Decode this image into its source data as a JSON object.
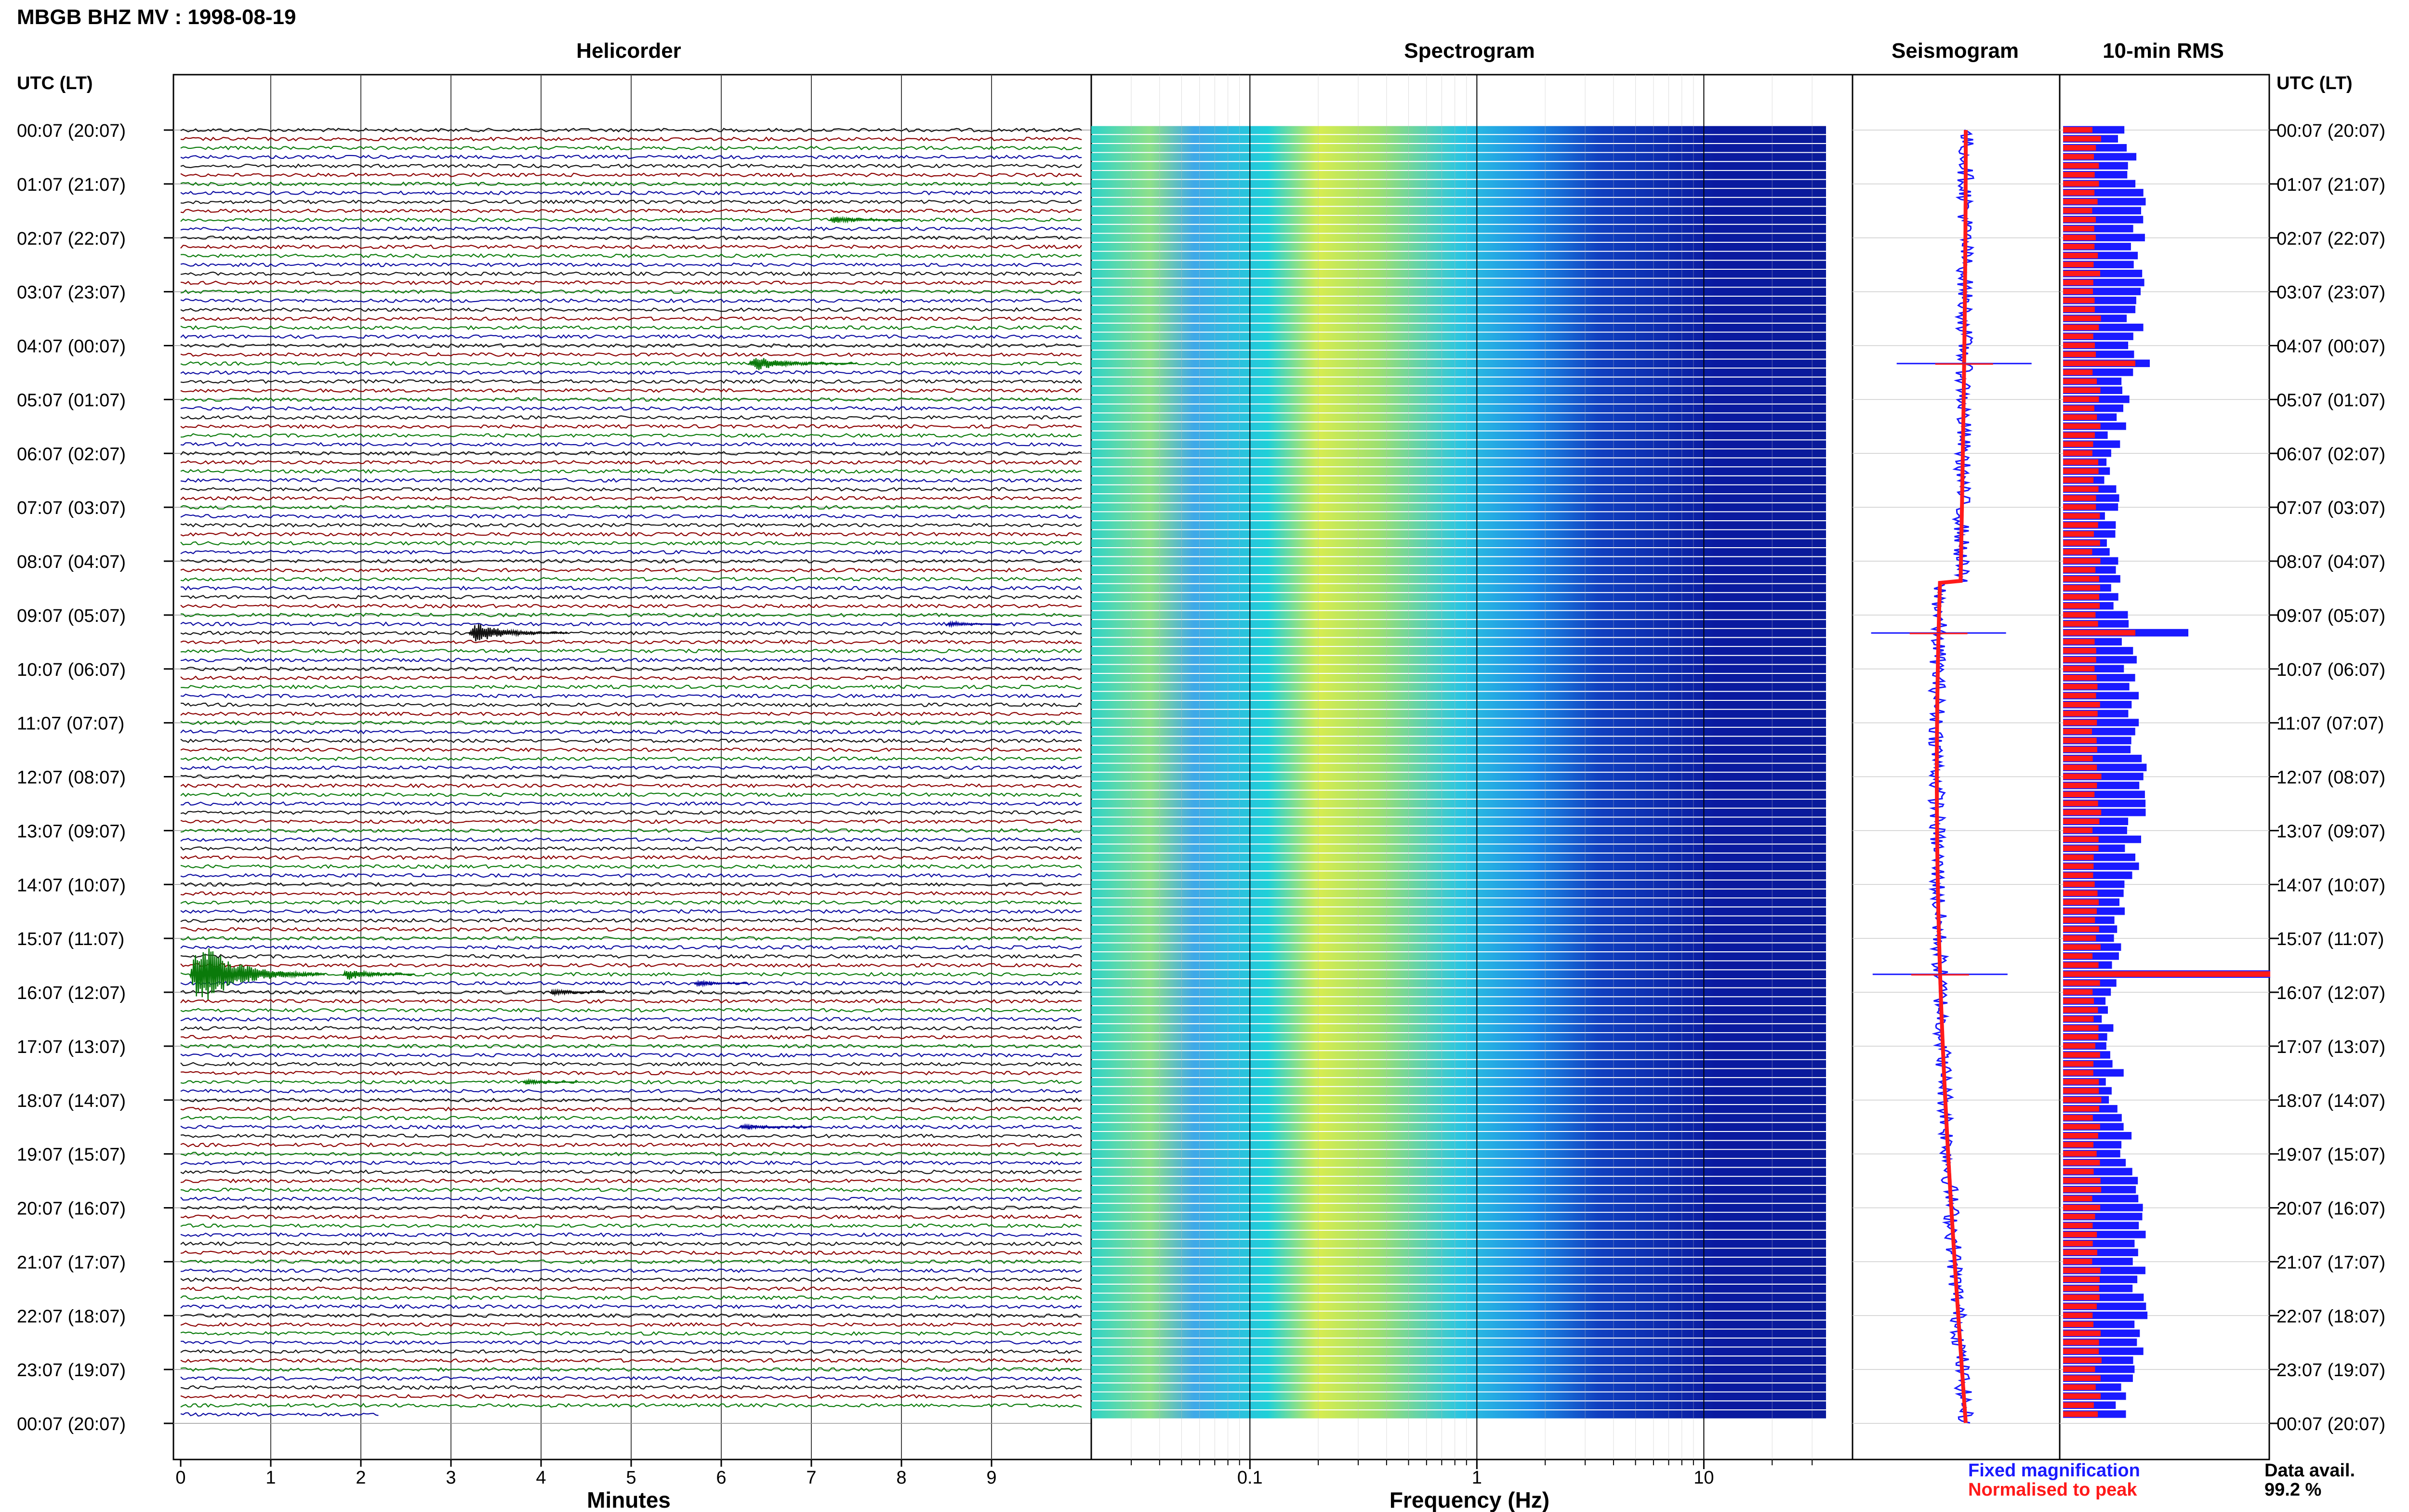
{
  "header": {
    "title": "MBGB BHZ MV : 1998-08-19"
  },
  "panels": {
    "helicorder": "Helicorder",
    "spectrogram": "Spectrogram",
    "seismogram": "Seismogram",
    "rms": "10-min RMS"
  },
  "axis": {
    "left_header": "UTC (LT)",
    "right_header": "UTC (LT)",
    "time_labels": [
      "00:07 (20:07)",
      "01:07 (21:07)",
      "02:07 (22:07)",
      "03:07 (23:07)",
      "04:07 (00:07)",
      "05:07 (01:07)",
      "06:07 (02:07)",
      "07:07 (03:07)",
      "08:07 (04:07)",
      "09:07 (05:07)",
      "10:07 (06:07)",
      "11:07 (07:07)",
      "12:07 (08:07)",
      "13:07 (09:07)",
      "14:07 (10:07)",
      "15:07 (11:07)",
      "16:07 (12:07)",
      "17:07 (13:07)",
      "18:07 (14:07)",
      "19:07 (15:07)",
      "20:07 (16:07)",
      "21:07 (17:07)",
      "22:07 (18:07)",
      "23:07 (19:07)",
      "00:07 (20:07)"
    ],
    "minutes_label": "Minutes",
    "minutes_ticks": [
      "0",
      "1",
      "2",
      "3",
      "4",
      "5",
      "6",
      "7",
      "8",
      "9"
    ],
    "frequency_label": "Frequency (Hz)",
    "frequency_ticks": [
      "0.1",
      "1",
      "10"
    ]
  },
  "legend": {
    "fixed": "Fixed magnification",
    "normalised": "Normalised to peak",
    "fixed_color": "#1a1aff",
    "normalised_color": "#ff1a1a"
  },
  "availability": {
    "label": "Data avail.",
    "value": "99.2 %"
  },
  "colors": {
    "trace_cycle": [
      "#111111",
      "#8b0000",
      "#0a7a0a",
      "#0a0aa0"
    ],
    "spectrogram_low": "#0a1aa0",
    "spectrogram_high": "#e8f050",
    "rms_fixed": "#1a1aff",
    "rms_normalised": "#ff1a1a"
  },
  "chart_data": [
    {
      "type": "line",
      "panel": "Helicorder",
      "xlabel": "Minutes",
      "xlim": [
        0,
        10
      ],
      "rows": 144,
      "row_minutes": 10,
      "start_utc": "00:07",
      "events": [
        {
          "start_min": 7.2,
          "row": 10,
          "duration_min": 0.8,
          "amplitude": 0.6
        },
        {
          "start_min": 6.3,
          "row": 26,
          "duration_min": 1.2,
          "amplitude": 1.2
        },
        {
          "start_min": 3.2,
          "row": 56,
          "duration_min": 1.1,
          "amplitude": 1.8
        },
        {
          "start_min": 8.5,
          "row": 55,
          "duration_min": 0.6,
          "amplitude": 0.5
        },
        {
          "start_min": 0.1,
          "row": 94,
          "duration_min": 1.5,
          "amplitude": 6.0
        },
        {
          "start_min": 1.8,
          "row": 94,
          "duration_min": 0.8,
          "amplitude": 1.0
        },
        {
          "start_min": 4.1,
          "row": 96,
          "duration_min": 0.6,
          "amplitude": 0.6
        },
        {
          "start_min": 5.7,
          "row": 95,
          "duration_min": 0.6,
          "amplitude": 0.5
        },
        {
          "start_min": 3.8,
          "row": 106,
          "duration_min": 0.6,
          "amplitude": 0.4
        },
        {
          "start_min": 6.2,
          "row": 111,
          "duration_min": 0.8,
          "amplitude": 0.4
        }
      ]
    },
    {
      "type": "heatmap",
      "panel": "Spectrogram",
      "xlabel": "Frequency (Hz)",
      "xscale": "log",
      "xlim": [
        0.02,
        40
      ],
      "peak_band_hz": [
        0.25,
        0.6
      ],
      "rows": 144
    },
    {
      "type": "line",
      "panel": "Seismogram",
      "series": [
        {
          "name": "Fixed magnification",
          "color": "#1a1aff"
        },
        {
          "name": "Normalised to peak",
          "color": "#ff1a1a"
        }
      ],
      "spikes_row": [
        26,
        56,
        94
      ]
    },
    {
      "type": "bar",
      "panel": "10-min RMS",
      "series": [
        {
          "name": "Fixed magnification",
          "color": "#1a1aff"
        },
        {
          "name": "Normalised to peak",
          "color": "#ff1a1a"
        }
      ],
      "peak_rows": [
        26,
        56,
        94
      ],
      "rows": 144
    }
  ]
}
